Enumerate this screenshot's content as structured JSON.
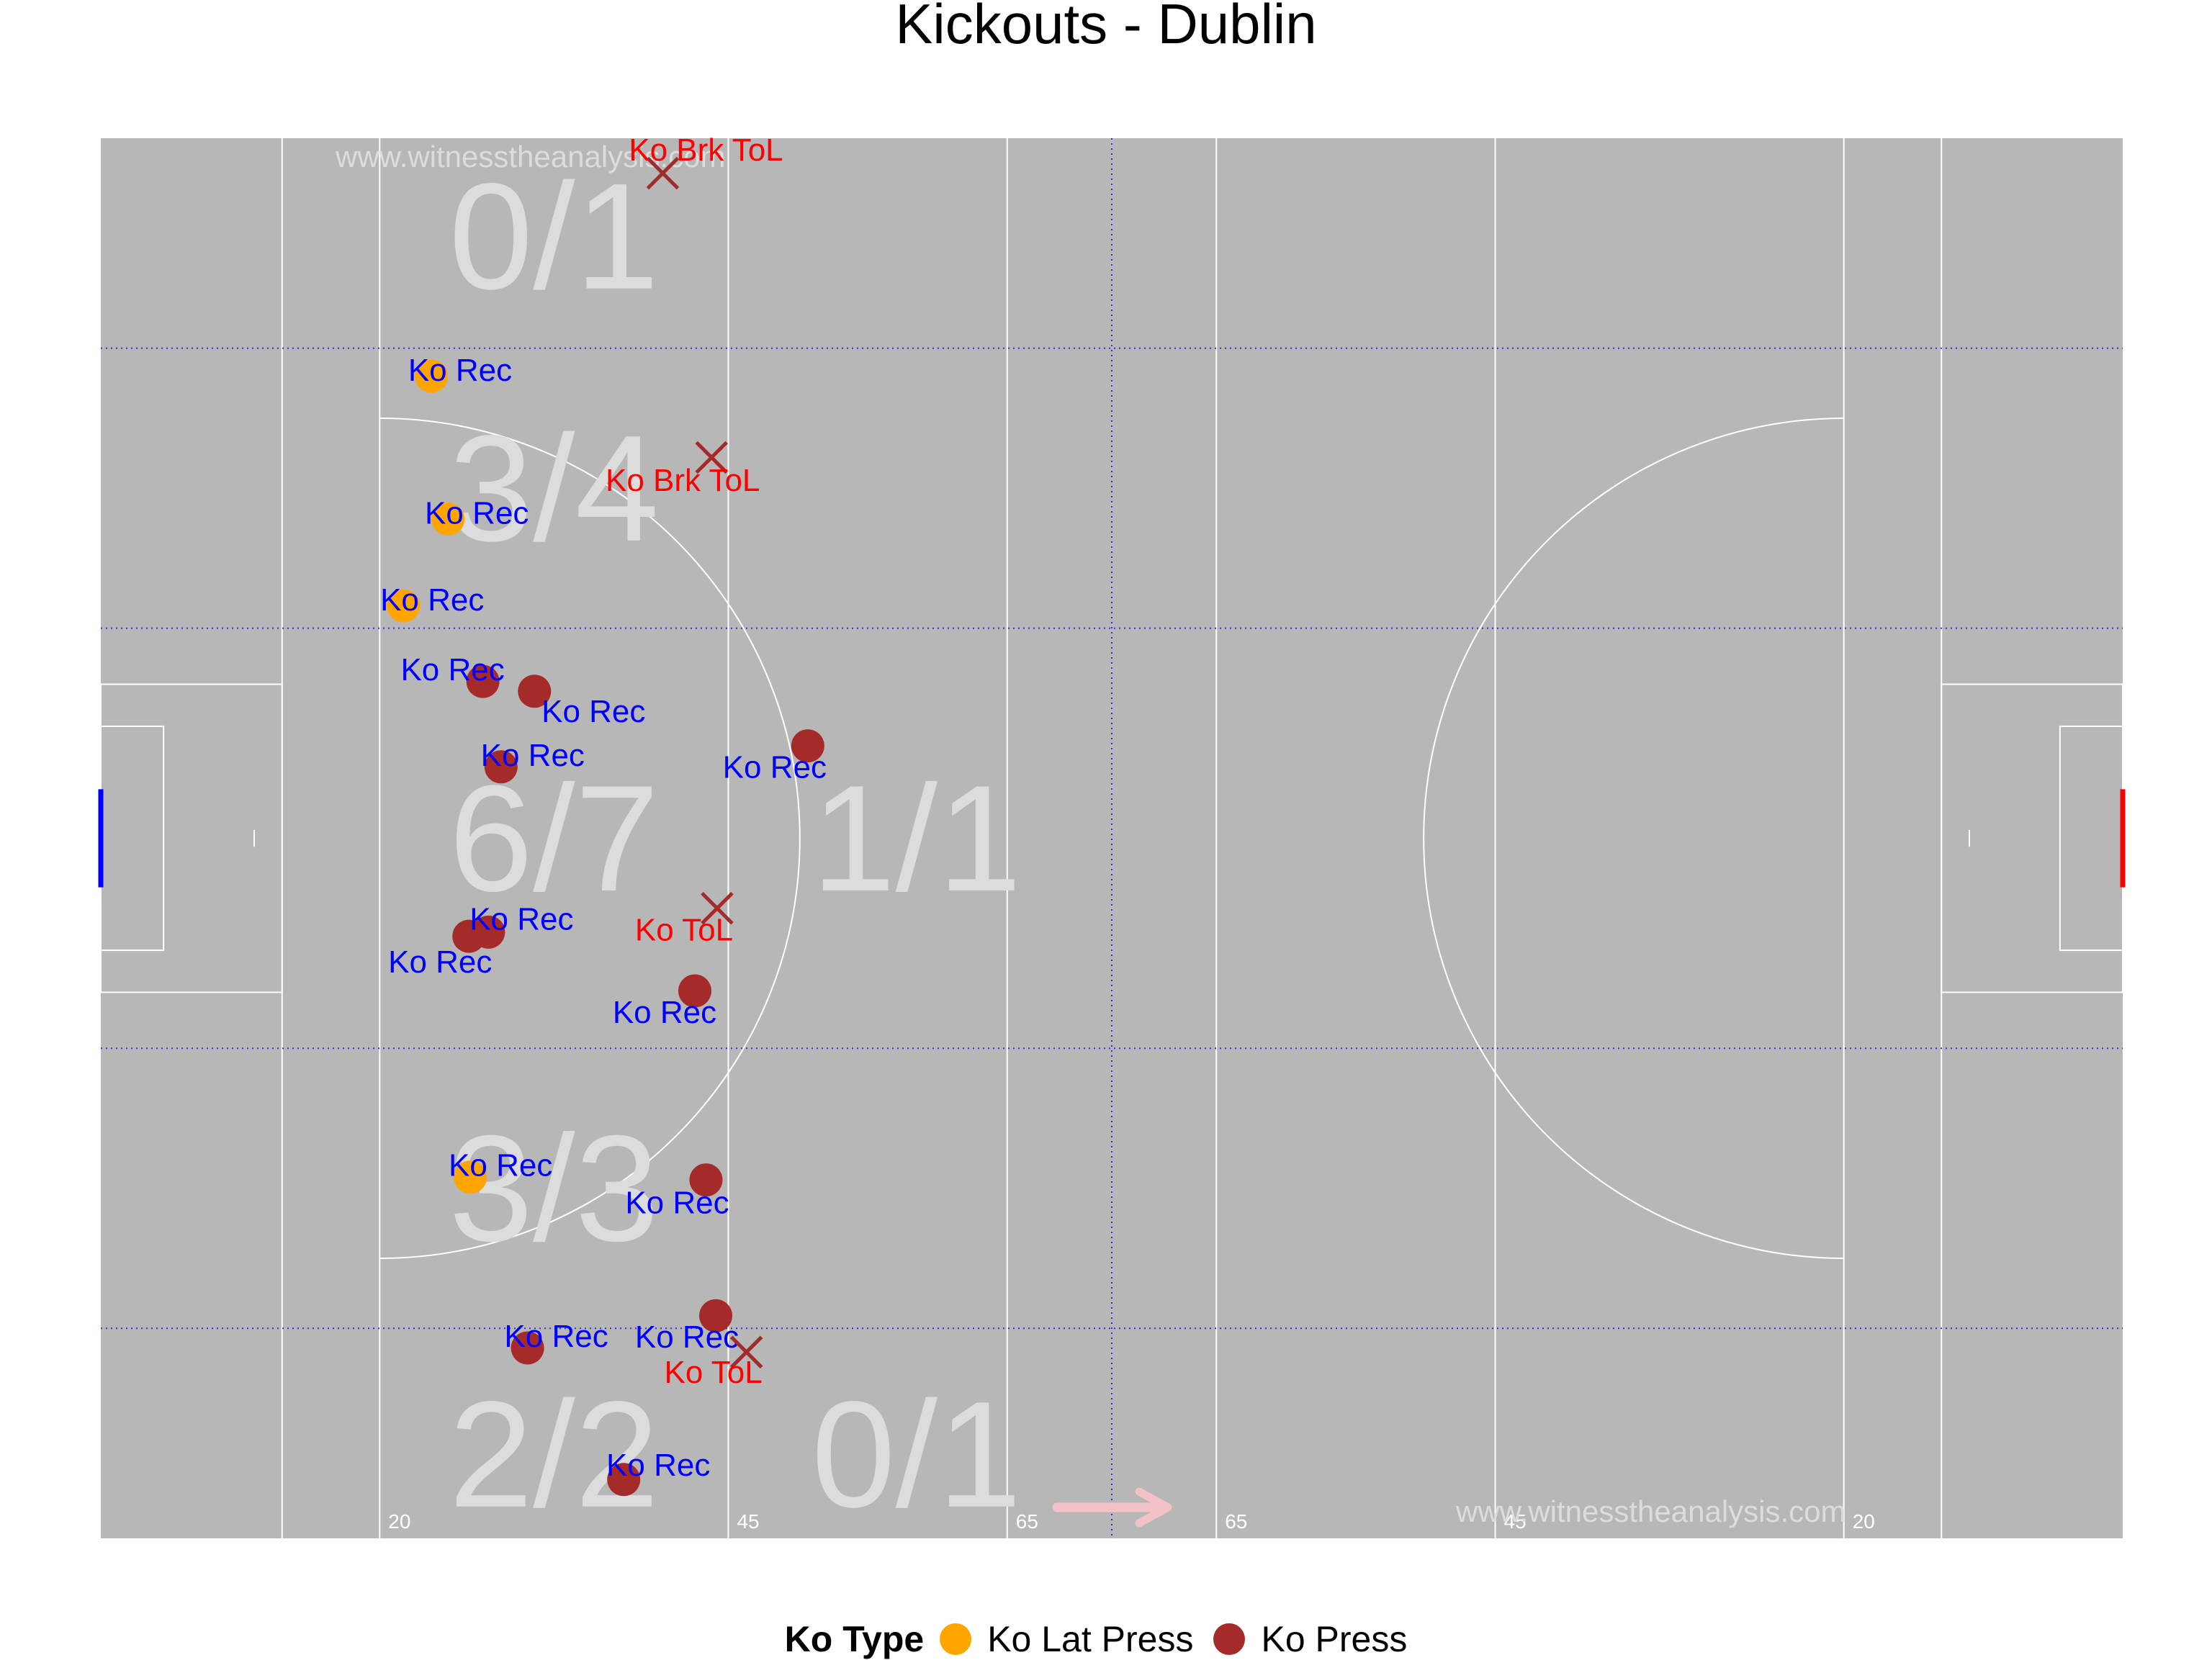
{
  "title": "Kickouts - Dublin",
  "colors": {
    "pitch": "#b7b7b7",
    "lines": "#ffffff",
    "lat_press": "#ffa500",
    "press": "#a52a2a",
    "label_rec": "#0000ff",
    "label_lost": "#ff0000",
    "zone_text": "#dcdcdc",
    "watermark": "#dcdcdc",
    "direction_arrow": "#f2c2c8",
    "home_goal": "#0000ff",
    "away_goal": "#ff0000"
  },
  "watermark": "www.witnesstheanalysis.com",
  "distance_markers": [
    "20",
    "45",
    "65",
    "65",
    "45",
    "20"
  ],
  "legend": {
    "title": "Ko Type",
    "items": [
      {
        "label": "Ko Lat Press",
        "color": "#ffa500"
      },
      {
        "label": "Ko Press",
        "color": "#a52a2a"
      }
    ]
  },
  "chart_data": {
    "type": "scatter",
    "title": "Kickouts - Dublin",
    "xlim": [
      0,
      145
    ],
    "ylim": [
      0,
      100
    ],
    "zones": [
      {
        "text": "0/1",
        "x": 32.5,
        "y": 93
      },
      {
        "text": "3/4",
        "x": 32.5,
        "y": 75
      },
      {
        "text": "6/7",
        "x": 32.5,
        "y": 50
      },
      {
        "text": "1/1",
        "x": 58.5,
        "y": 50
      },
      {
        "text": "3/3",
        "x": 32.5,
        "y": 25
      },
      {
        "text": "2/2",
        "x": 32.5,
        "y": 6
      },
      {
        "text": "0/1",
        "x": 58.5,
        "y": 6
      }
    ],
    "points": [
      {
        "x": 23.7,
        "y": 83,
        "type": "Ko Lat Press",
        "outcome": "Ko Rec"
      },
      {
        "x": 24.9,
        "y": 72.8,
        "type": "Ko Lat Press",
        "outcome": "Ko Rec"
      },
      {
        "x": 21.7,
        "y": 66.6,
        "type": "Ko Lat Press",
        "outcome": "Ko Rec"
      },
      {
        "x": 27.4,
        "y": 61.2,
        "type": "Ko Press",
        "outcome": "Ko Rec"
      },
      {
        "x": 31.1,
        "y": 60.5,
        "type": "Ko Press",
        "outcome": "Ko Rec"
      },
      {
        "x": 50.7,
        "y": 56.6,
        "type": "Ko Press",
        "outcome": "Ko Rec"
      },
      {
        "x": 28.7,
        "y": 55.1,
        "type": "Ko Press",
        "outcome": "Ko Rec"
      },
      {
        "x": 27.8,
        "y": 43.3,
        "type": "Ko Press",
        "outcome": "Ko Rec"
      },
      {
        "x": 26.4,
        "y": 43.0,
        "type": "Ko Press",
        "outcome": "Ko Rec"
      },
      {
        "x": 42.6,
        "y": 39.1,
        "type": "Ko Press",
        "outcome": "Ko Rec"
      },
      {
        "x": 26.5,
        "y": 25.8,
        "type": "Ko Lat Press",
        "outcome": "Ko Rec"
      },
      {
        "x": 43.4,
        "y": 25.6,
        "type": "Ko Press",
        "outcome": "Ko Rec"
      },
      {
        "x": 44.1,
        "y": 15.9,
        "type": "Ko Press",
        "outcome": "Ko Rec"
      },
      {
        "x": 30.6,
        "y": 13.6,
        "type": "Ko Press",
        "outcome": "Ko Rec"
      },
      {
        "x": 37.5,
        "y": 4.2,
        "type": "Ko Press",
        "outcome": "Ko Rec"
      }
    ],
    "losses": [
      {
        "x": 40.3,
        "y": 97.5,
        "outcome": "Ko Brk ToL"
      },
      {
        "x": 43.8,
        "y": 77.2,
        "outcome": "Ko Brk ToL"
      },
      {
        "x": 44.2,
        "y": 45.0,
        "outcome": "Ko ToL"
      },
      {
        "x": 46.3,
        "y": 13.3,
        "outcome": "Ko ToL"
      }
    ]
  }
}
